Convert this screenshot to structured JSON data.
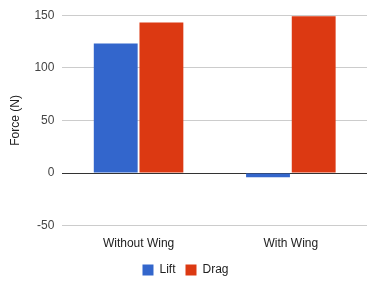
{
  "chart_data": {
    "type": "bar",
    "categories": [
      "Without Wing",
      "With Wing"
    ],
    "series": [
      {
        "name": "Lift",
        "color": "#3366cc",
        "values": [
          123,
          -4
        ]
      },
      {
        "name": "Drag",
        "color": "#dc3912",
        "values": [
          143,
          149
        ]
      }
    ],
    "y_label": "Force (N)",
    "ylim": [
      -50,
      150
    ],
    "yticks": [
      -50,
      0,
      50,
      100,
      150
    ],
    "grid": true,
    "legend": "bottom"
  }
}
